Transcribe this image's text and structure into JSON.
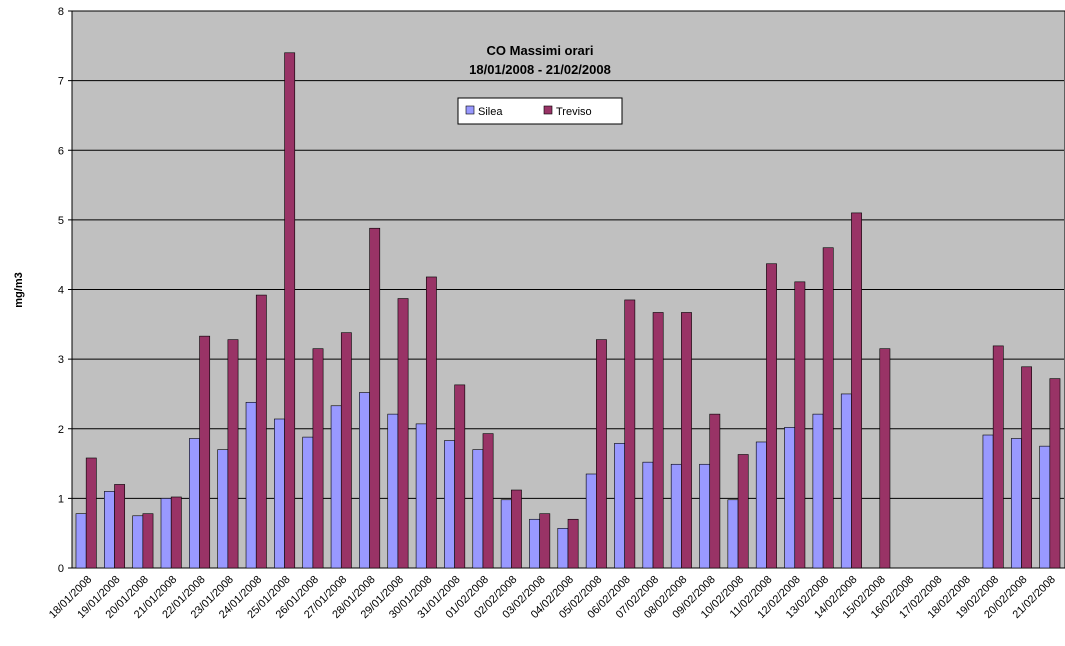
{
  "chart_data": {
    "type": "bar",
    "title": "CO Massimi orari",
    "subtitle": "18/01/2008 - 21/02/2008",
    "y_label": "mg/m3",
    "categories": [
      "18/01/2008",
      "19/01/2008",
      "20/01/2008",
      "21/01/2008",
      "22/01/2008",
      "23/01/2008",
      "24/01/2008",
      "25/01/2008",
      "26/01/2008",
      "27/01/2008",
      "28/01/2008",
      "29/01/2008",
      "30/01/2008",
      "31/01/2008",
      "01/02/2008",
      "02/02/2008",
      "03/02/2008",
      "04/02/2008",
      "05/02/2008",
      "06/02/2008",
      "07/02/2008",
      "08/02/2008",
      "09/02/2008",
      "10/02/2008",
      "11/02/2008",
      "12/02/2008",
      "13/02/2008",
      "14/02/2008",
      "15/02/2008",
      "16/02/2008",
      "17/02/2008",
      "18/02/2008",
      "19/02/2008",
      "20/02/2008",
      "21/02/2008"
    ],
    "series": [
      {
        "name": "Silea",
        "color": "#9999ff",
        "values": [
          0.78,
          1.1,
          0.75,
          1.0,
          1.86,
          1.7,
          2.38,
          2.14,
          1.88,
          2.33,
          2.52,
          2.21,
          2.07,
          1.83,
          1.7,
          0.98,
          0.7,
          0.57,
          1.35,
          1.79,
          1.52,
          1.49,
          1.49,
          0.98,
          1.81,
          2.02,
          2.21,
          2.5,
          null,
          null,
          null,
          null,
          1.91,
          1.86,
          1.75
        ]
      },
      {
        "name": "Treviso",
        "color": "#993366",
        "values": [
          1.58,
          1.2,
          0.78,
          1.02,
          3.33,
          3.28,
          3.92,
          7.4,
          3.15,
          3.38,
          4.88,
          3.87,
          4.18,
          2.63,
          1.93,
          1.12,
          0.78,
          0.7,
          3.28,
          3.85,
          3.67,
          3.67,
          2.21,
          1.63,
          4.37,
          4.11,
          4.6,
          5.1,
          3.15,
          null,
          null,
          null,
          3.19,
          2.89,
          2.72
        ]
      }
    ],
    "ylim": [
      0,
      8
    ],
    "yticks": [
      0,
      1,
      2,
      3,
      4,
      5,
      6,
      7,
      8
    ],
    "grid": true,
    "background": "#c0c0c0"
  }
}
